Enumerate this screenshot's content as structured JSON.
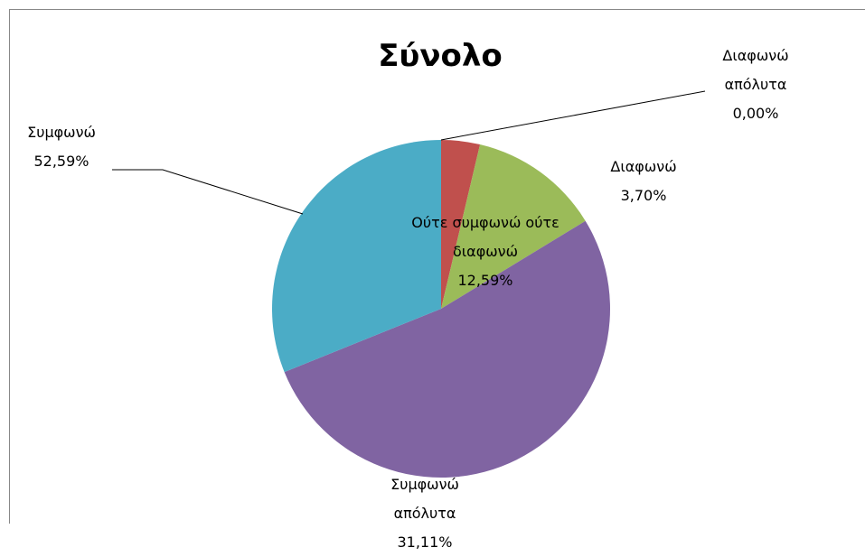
{
  "chart_data": {
    "type": "pie",
    "title": "Σύνολο",
    "categories": [
      "Διαφωνώ απόλυτα",
      "Διαφωνώ",
      "Ούτε συμφωνώ ούτε διαφωνώ",
      "Συμφωνώ",
      "Συμφωνώ απόλυτα"
    ],
    "values": [
      0,
      3.7,
      12.59,
      52.59,
      31.11
    ],
    "value_labels": [
      "0,00%",
      "3,70%",
      "12,59%",
      "52,59%",
      "31,11%"
    ],
    "colors": [
      "#4f81bd",
      "#c0504d",
      "#9bbb59",
      "#8064a2",
      "#4bacc6"
    ]
  }
}
